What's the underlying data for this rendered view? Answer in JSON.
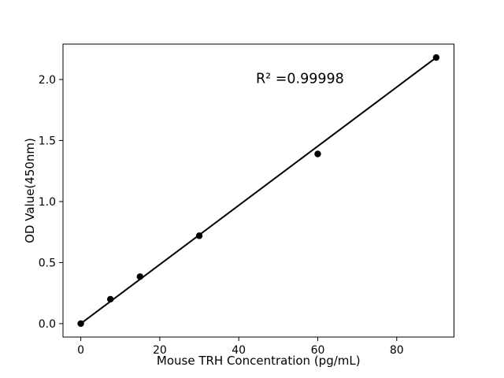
{
  "chart_data": {
    "type": "scatter",
    "title": "",
    "xlabel": "Mouse TRH Concentration (pg/mL)",
    "ylabel": "OD Value(450nm)",
    "x": [
      0,
      7.5,
      15,
      30,
      60,
      90
    ],
    "y": [
      0.0,
      0.2,
      0.385,
      0.72,
      1.39,
      2.18
    ],
    "series": [
      {
        "name": "standards",
        "marker": "filled-circle",
        "color": "#000000"
      }
    ],
    "trendline": {
      "type": "linear",
      "x": [
        0,
        90
      ],
      "y": [
        0.0,
        2.18
      ],
      "color": "#000000"
    },
    "annotation": {
      "text": "R² =0.99998",
      "x": 55.5,
      "y": 1.97
    },
    "xticks": [
      0,
      20,
      40,
      60,
      80
    ],
    "xtick_labels": [
      "0",
      "20",
      "40",
      "60",
      "80"
    ],
    "yticks": [
      0.0,
      0.5,
      1.0,
      1.5,
      2.0
    ],
    "ytick_labels": [
      "0.0",
      "0.5",
      "1.0",
      "1.5",
      "2.0"
    ],
    "xlim": [
      -4.5,
      94.5
    ],
    "ylim": [
      -0.11,
      2.29
    ],
    "grid": false,
    "legend_position": "none",
    "background_color": "#ffffff",
    "axis_color": "#000000"
  }
}
